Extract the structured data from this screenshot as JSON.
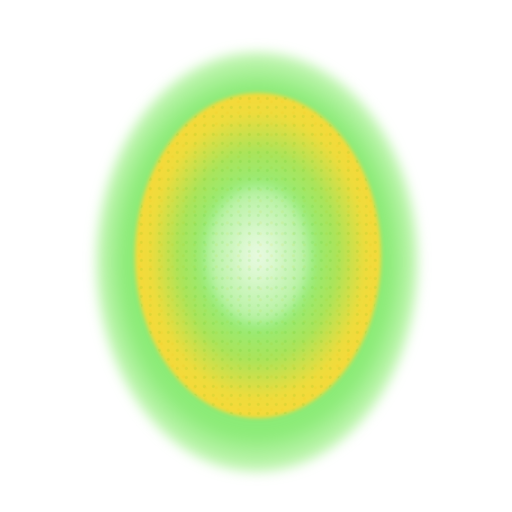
{
  "image": {
    "colors": {
      "background": "#ffffff",
      "outer_glow": "#78e860",
      "ring": "#ffd636",
      "core": "#e2f8d6"
    }
  }
}
